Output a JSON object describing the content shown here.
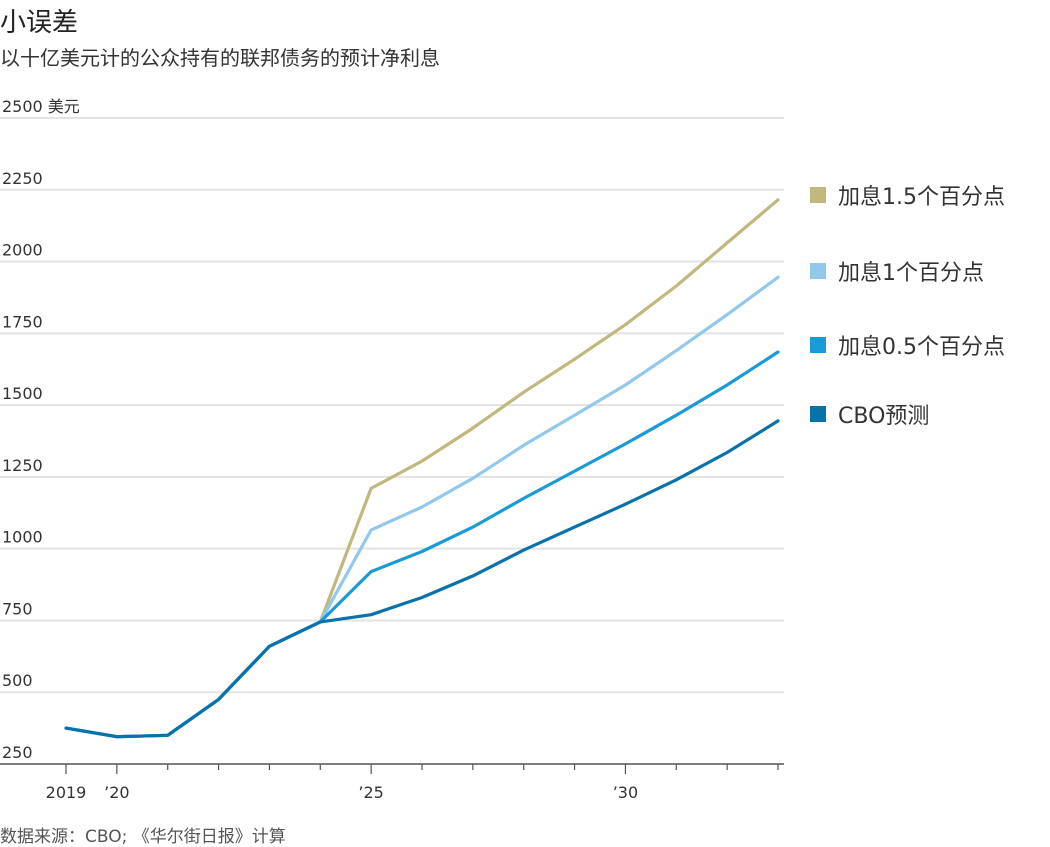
{
  "title": "小误差",
  "subtitle": "以十亿美元计的公众持有的联邦债务的预计净利息",
  "source": "数据来源：CBO; 《华尔街日报》计算",
  "chart_data": {
    "type": "line",
    "x": [
      2019,
      2020,
      2021,
      2022,
      2023,
      2024,
      2025,
      2026,
      2027,
      2028,
      2029,
      2030,
      2031,
      2032,
      2033
    ],
    "ylim": [
      250,
      2500
    ],
    "xlim": [
      2019,
      2033
    ],
    "y_ticks": [
      250,
      500,
      750,
      1000,
      1250,
      1500,
      1750,
      2000,
      2250,
      2500
    ],
    "y_tick_labels": [
      "250",
      "500",
      "750",
      "1000",
      "1250",
      "1500",
      "1750",
      "2000",
      "2250",
      "2500 美元"
    ],
    "x_ticks": [
      2019,
      2020,
      2025,
      2030
    ],
    "x_tick_labels": [
      "2019",
      "’20",
      "’25",
      "’30"
    ],
    "grid": true,
    "legend_position": "right",
    "series": [
      {
        "name": "加息1.5个百分点",
        "color": "#c2b77d",
        "values": [
          375,
          345,
          350,
          475,
          660,
          745,
          1210,
          1305,
          1420,
          1545,
          1660,
          1780,
          1915,
          2065,
          2215
        ]
      },
      {
        "name": "加息1个百分点",
        "color": "#92c8ec",
        "values": [
          375,
          345,
          350,
          475,
          660,
          745,
          1065,
          1145,
          1245,
          1360,
          1465,
          1570,
          1690,
          1815,
          1945
        ]
      },
      {
        "name": "加息0.5个百分点",
        "color": "#1a9ad6",
        "values": [
          375,
          345,
          350,
          475,
          660,
          745,
          920,
          990,
          1075,
          1175,
          1270,
          1365,
          1465,
          1570,
          1685
        ]
      },
      {
        "name": "CBO预测",
        "color": "#0a72aa",
        "values": [
          375,
          345,
          350,
          475,
          660,
          745,
          770,
          830,
          905,
          995,
          1075,
          1155,
          1240,
          1335,
          1445
        ]
      }
    ]
  }
}
